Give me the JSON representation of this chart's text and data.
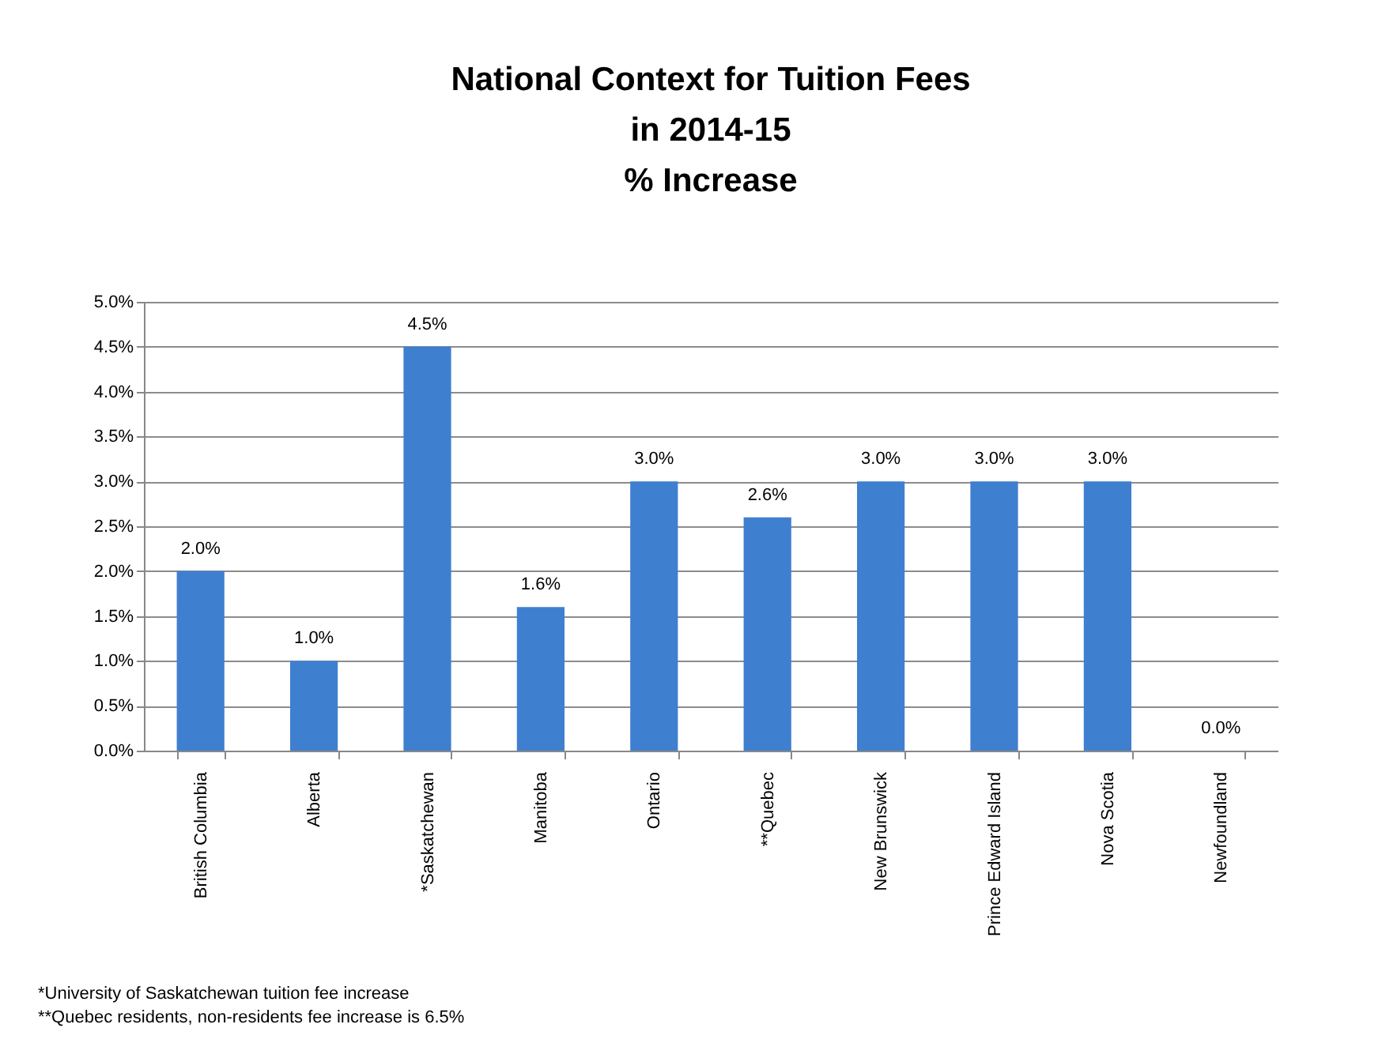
{
  "chart_data": {
    "type": "bar",
    "title": "National Context for Tuition Fees\nin 2014-15\n% Increase",
    "categories": [
      "British Columbia",
      "Alberta",
      "*Saskatchewan",
      "Manitoba",
      "Ontario",
      "**Quebec",
      "New Brunswick",
      "Prince Edward Island",
      "Nova Scotia",
      "Newfoundland"
    ],
    "values": [
      2.0,
      1.0,
      4.5,
      1.6,
      3.0,
      2.6,
      3.0,
      3.0,
      3.0,
      0.0
    ],
    "value_labels": [
      "2.0%",
      "1.0%",
      "4.5%",
      "1.6%",
      "3.0%",
      "2.6%",
      "3.0%",
      "3.0%",
      "3.0%",
      "0.0%"
    ],
    "color": "#3f7fd0",
    "ylim": [
      0,
      5
    ],
    "yticks": [
      {
        "value": 0,
        "label": "0.0%"
      },
      {
        "value": 0.5,
        "label": "0.5%"
      },
      {
        "value": 1,
        "label": "1.0%"
      },
      {
        "value": 1.5,
        "label": "1.5%"
      },
      {
        "value": 2,
        "label": "2.0%"
      },
      {
        "value": 2.5,
        "label": "2.5%"
      },
      {
        "value": 3,
        "label": "3.0%"
      },
      {
        "value": 3.5,
        "label": "3.5%"
      },
      {
        "value": 4,
        "label": "4.0%"
      },
      {
        "value": 4.5,
        "label": "4.5%"
      },
      {
        "value": 5,
        "label": "5.0%"
      }
    ],
    "grid": "y",
    "annotations": [
      "*University of Saskatchewan tuition fee increase",
      "**Quebec residents, non-residents fee increase is 6.5%"
    ]
  }
}
